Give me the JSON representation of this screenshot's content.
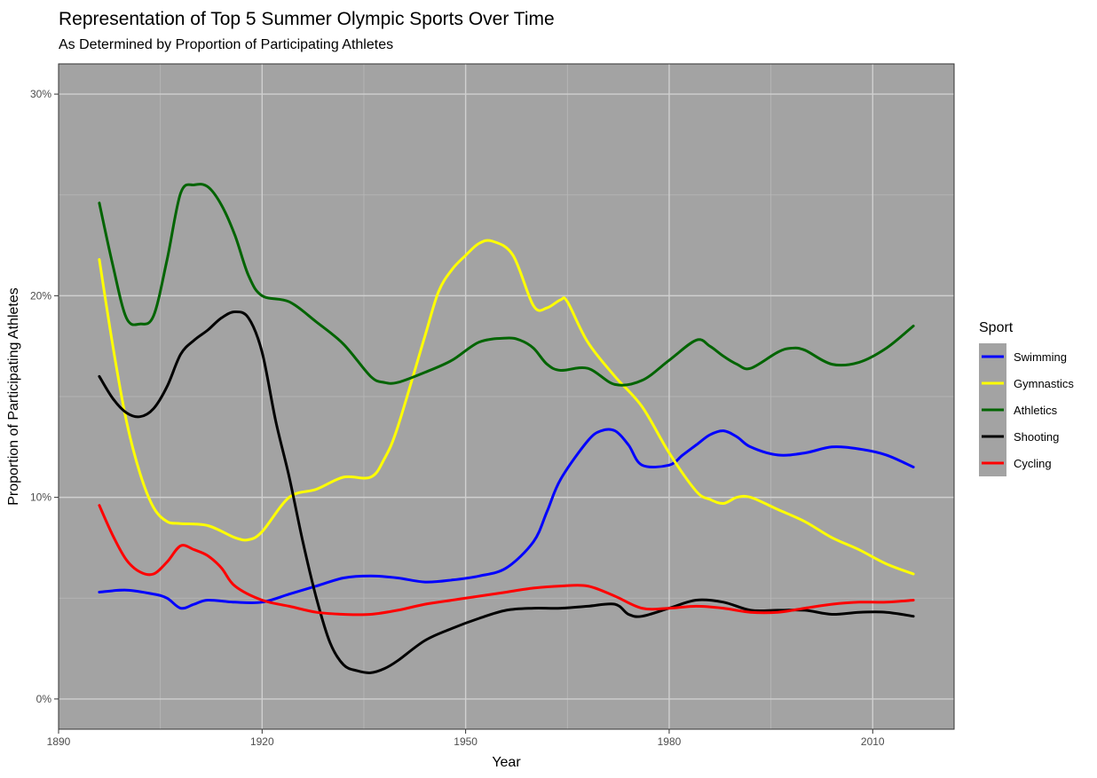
{
  "chart_data": {
    "type": "line",
    "title": "Representation of Top 5 Summer Olympic Sports Over Time",
    "subtitle": "As Determined by Proportion of Participating Athletes",
    "xlabel": "Year",
    "ylabel": "Proportion of Participating Athletes",
    "xlim": [
      1890,
      2022
    ],
    "ylim": [
      -1.5,
      31.5
    ],
    "x_ticks": [
      1890,
      1920,
      1950,
      1980,
      2010
    ],
    "y_ticks": [
      0,
      10,
      20,
      30
    ],
    "y_tick_labels": [
      "0%",
      "10%",
      "20%",
      "30%"
    ],
    "grid": true,
    "panel_background": "#a3a3a3",
    "legend": {
      "title": "Sport",
      "position": "right"
    },
    "series": [
      {
        "name": "Swimming",
        "color": "#0000ff",
        "points": [
          [
            1896,
            5.3
          ],
          [
            1900,
            5.4
          ],
          [
            1904,
            5.2
          ],
          [
            1906,
            5.0
          ],
          [
            1908,
            4.5
          ],
          [
            1910,
            4.7
          ],
          [
            1912,
            4.9
          ],
          [
            1916,
            4.8
          ],
          [
            1920,
            4.8
          ],
          [
            1924,
            5.2
          ],
          [
            1928,
            5.6
          ],
          [
            1932,
            6.0
          ],
          [
            1936,
            6.1
          ],
          [
            1940,
            6.0
          ],
          [
            1944,
            5.8
          ],
          [
            1948,
            5.9
          ],
          [
            1952,
            6.1
          ],
          [
            1956,
            6.5
          ],
          [
            1960,
            7.8
          ],
          [
            1962,
            9.3
          ],
          [
            1964,
            10.9
          ],
          [
            1968,
            12.8
          ],
          [
            1970,
            13.3
          ],
          [
            1972,
            13.3
          ],
          [
            1974,
            12.6
          ],
          [
            1976,
            11.6
          ],
          [
            1980,
            11.6
          ],
          [
            1982,
            12.1
          ],
          [
            1984,
            12.6
          ],
          [
            1986,
            13.1
          ],
          [
            1988,
            13.3
          ],
          [
            1990,
            13.0
          ],
          [
            1992,
            12.5
          ],
          [
            1996,
            12.1
          ],
          [
            2000,
            12.2
          ],
          [
            2004,
            12.5
          ],
          [
            2008,
            12.4
          ],
          [
            2012,
            12.1
          ],
          [
            2016,
            11.5
          ]
        ]
      },
      {
        "name": "Gymnastics",
        "color": "#ffff00",
        "points": [
          [
            1896,
            21.8
          ],
          [
            1898,
            17.5
          ],
          [
            1900,
            13.8
          ],
          [
            1902,
            11.2
          ],
          [
            1904,
            9.5
          ],
          [
            1906,
            8.8
          ],
          [
            1908,
            8.7
          ],
          [
            1912,
            8.6
          ],
          [
            1916,
            8.0
          ],
          [
            1918,
            7.9
          ],
          [
            1920,
            8.3
          ],
          [
            1924,
            10.0
          ],
          [
            1928,
            10.4
          ],
          [
            1932,
            11.0
          ],
          [
            1936,
            11.0
          ],
          [
            1938,
            11.9
          ],
          [
            1940,
            13.5
          ],
          [
            1944,
            18.0
          ],
          [
            1946,
            20.2
          ],
          [
            1948,
            21.3
          ],
          [
            1950,
            22.0
          ],
          [
            1952,
            22.6
          ],
          [
            1954,
            22.7
          ],
          [
            1957,
            22.0
          ],
          [
            1960,
            19.5
          ],
          [
            1962,
            19.4
          ],
          [
            1964,
            19.8
          ],
          [
            1965,
            19.7
          ],
          [
            1968,
            17.7
          ],
          [
            1972,
            16.0
          ],
          [
            1976,
            14.5
          ],
          [
            1980,
            12.2
          ],
          [
            1984,
            10.3
          ],
          [
            1986,
            9.9
          ],
          [
            1988,
            9.7
          ],
          [
            1990,
            10.0
          ],
          [
            1992,
            10.0
          ],
          [
            1996,
            9.4
          ],
          [
            2000,
            8.8
          ],
          [
            2004,
            8.0
          ],
          [
            2008,
            7.4
          ],
          [
            2012,
            6.7
          ],
          [
            2016,
            6.2
          ]
        ]
      },
      {
        "name": "Athletics",
        "color": "#006400",
        "points": [
          [
            1896,
            24.6
          ],
          [
            1898,
            21.5
          ],
          [
            1900,
            18.9
          ],
          [
            1902,
            18.6
          ],
          [
            1904,
            19.0
          ],
          [
            1906,
            21.8
          ],
          [
            1908,
            25.1
          ],
          [
            1910,
            25.5
          ],
          [
            1912,
            25.4
          ],
          [
            1914,
            24.5
          ],
          [
            1916,
            23.0
          ],
          [
            1918,
            21.0
          ],
          [
            1920,
            20.0
          ],
          [
            1924,
            19.7
          ],
          [
            1928,
            18.7
          ],
          [
            1932,
            17.6
          ],
          [
            1936,
            16.0
          ],
          [
            1938,
            15.7
          ],
          [
            1940,
            15.7
          ],
          [
            1944,
            16.2
          ],
          [
            1948,
            16.8
          ],
          [
            1952,
            17.7
          ],
          [
            1956,
            17.9
          ],
          [
            1958,
            17.8
          ],
          [
            1960,
            17.4
          ],
          [
            1962,
            16.6
          ],
          [
            1964,
            16.3
          ],
          [
            1968,
            16.4
          ],
          [
            1972,
            15.6
          ],
          [
            1976,
            15.8
          ],
          [
            1980,
            16.8
          ],
          [
            1984,
            17.8
          ],
          [
            1986,
            17.5
          ],
          [
            1988,
            17.0
          ],
          [
            1990,
            16.6
          ],
          [
            1992,
            16.4
          ],
          [
            1996,
            17.2
          ],
          [
            1998,
            17.4
          ],
          [
            2000,
            17.3
          ],
          [
            2004,
            16.6
          ],
          [
            2008,
            16.7
          ],
          [
            2012,
            17.4
          ],
          [
            2016,
            18.5
          ]
        ]
      },
      {
        "name": "Shooting",
        "color": "#000000",
        "points": [
          [
            1896,
            16.0
          ],
          [
            1898,
            14.9
          ],
          [
            1900,
            14.2
          ],
          [
            1902,
            14.0
          ],
          [
            1904,
            14.4
          ],
          [
            1906,
            15.5
          ],
          [
            1908,
            17.1
          ],
          [
            1910,
            17.8
          ],
          [
            1912,
            18.3
          ],
          [
            1914,
            18.9
          ],
          [
            1916,
            19.2
          ],
          [
            1918,
            18.9
          ],
          [
            1920,
            17.2
          ],
          [
            1922,
            13.8
          ],
          [
            1924,
            11.0
          ],
          [
            1926,
            7.8
          ],
          [
            1928,
            5.0
          ],
          [
            1930,
            2.8
          ],
          [
            1932,
            1.7
          ],
          [
            1934,
            1.4
          ],
          [
            1936,
            1.3
          ],
          [
            1938,
            1.5
          ],
          [
            1940,
            1.9
          ],
          [
            1944,
            2.9
          ],
          [
            1948,
            3.5
          ],
          [
            1952,
            4.0
          ],
          [
            1956,
            4.4
          ],
          [
            1960,
            4.5
          ],
          [
            1964,
            4.5
          ],
          [
            1968,
            4.6
          ],
          [
            1972,
            4.7
          ],
          [
            1974,
            4.2
          ],
          [
            1976,
            4.1
          ],
          [
            1980,
            4.5
          ],
          [
            1984,
            4.9
          ],
          [
            1988,
            4.8
          ],
          [
            1992,
            4.4
          ],
          [
            1996,
            4.4
          ],
          [
            2000,
            4.4
          ],
          [
            2004,
            4.2
          ],
          [
            2008,
            4.3
          ],
          [
            2012,
            4.3
          ],
          [
            2016,
            4.1
          ]
        ]
      },
      {
        "name": "Cycling",
        "color": "#ff0000",
        "points": [
          [
            1896,
            9.6
          ],
          [
            1898,
            8.1
          ],
          [
            1900,
            6.9
          ],
          [
            1902,
            6.3
          ],
          [
            1904,
            6.2
          ],
          [
            1906,
            6.8
          ],
          [
            1908,
            7.6
          ],
          [
            1910,
            7.4
          ],
          [
            1912,
            7.1
          ],
          [
            1914,
            6.5
          ],
          [
            1916,
            5.6
          ],
          [
            1920,
            4.9
          ],
          [
            1924,
            4.6
          ],
          [
            1928,
            4.3
          ],
          [
            1932,
            4.2
          ],
          [
            1936,
            4.2
          ],
          [
            1940,
            4.4
          ],
          [
            1944,
            4.7
          ],
          [
            1948,
            4.9
          ],
          [
            1952,
            5.1
          ],
          [
            1956,
            5.3
          ],
          [
            1960,
            5.5
          ],
          [
            1964,
            5.6
          ],
          [
            1968,
            5.6
          ],
          [
            1972,
            5.1
          ],
          [
            1976,
            4.5
          ],
          [
            1980,
            4.5
          ],
          [
            1984,
            4.6
          ],
          [
            1988,
            4.5
          ],
          [
            1992,
            4.3
          ],
          [
            1996,
            4.3
          ],
          [
            2000,
            4.5
          ],
          [
            2004,
            4.7
          ],
          [
            2008,
            4.8
          ],
          [
            2012,
            4.8
          ],
          [
            2016,
            4.9
          ]
        ]
      }
    ]
  }
}
